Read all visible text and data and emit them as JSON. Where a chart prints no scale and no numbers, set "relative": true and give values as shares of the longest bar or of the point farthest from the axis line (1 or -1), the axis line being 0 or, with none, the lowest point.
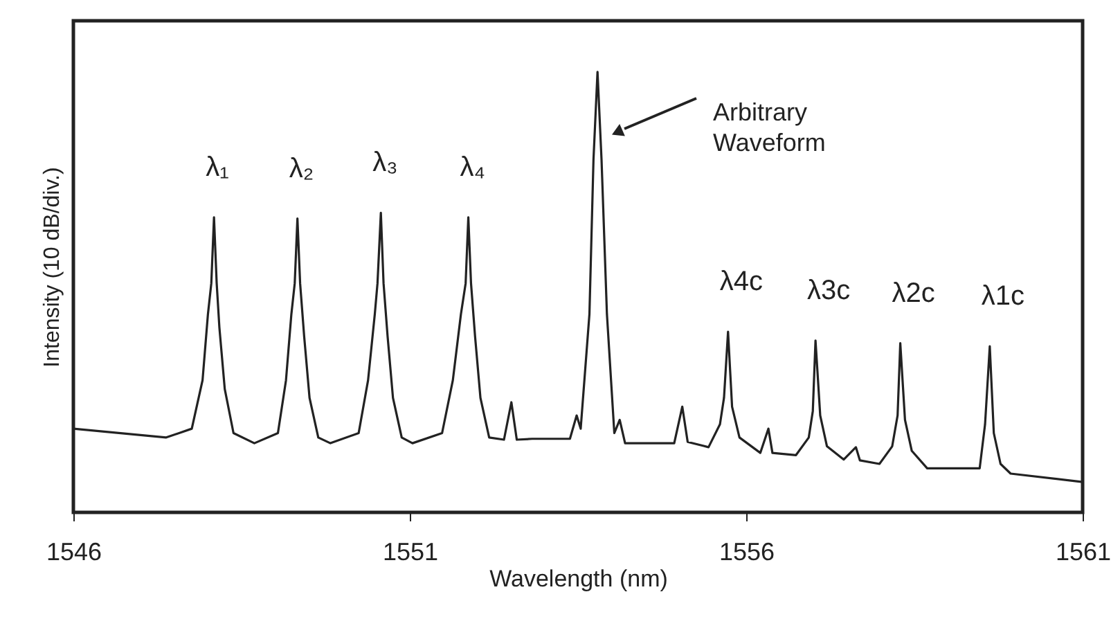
{
  "chart_data": {
    "type": "line",
    "relative": true,
    "xlabel": "Wavelength (nm)",
    "ylabel": "Intensity (10 dB/div.)",
    "xlim": [
      1546,
      1561
    ],
    "xticks": [
      1546,
      1551,
      1556,
      1561
    ],
    "grid": false,
    "marker": "none",
    "line_style": "solid",
    "series": [
      {
        "color": "#222222",
        "x": [
          1546.0,
          1547.38,
          1547.76,
          1547.92,
          1548.0,
          1548.05,
          1548.09,
          1548.13,
          1548.17,
          1548.25,
          1548.38,
          1548.69,
          1549.04,
          1549.16,
          1549.24,
          1549.29,
          1549.33,
          1549.37,
          1549.43,
          1549.51,
          1549.64,
          1549.82,
          1550.24,
          1550.38,
          1550.48,
          1550.52,
          1550.57,
          1550.61,
          1550.67,
          1550.75,
          1550.88,
          1551.04,
          1551.48,
          1551.64,
          1551.76,
          1551.83,
          1551.87,
          1551.91,
          1551.97,
          1552.05,
          1552.18,
          1552.4,
          1552.51,
          1552.59,
          1552.82,
          1553.38,
          1553.48,
          1553.54,
          1553.67,
          1553.73,
          1553.79,
          1553.85,
          1553.93,
          1554.04,
          1554.12,
          1554.2,
          1554.93,
          1555.05,
          1555.13,
          1555.44,
          1555.61,
          1555.67,
          1555.73,
          1555.79,
          1555.9,
          1556.21,
          1556.33,
          1556.39,
          1556.74,
          1556.93,
          1556.99,
          1557.03,
          1557.1,
          1557.2,
          1557.45,
          1557.63,
          1557.69,
          1557.98,
          1558.17,
          1558.25,
          1558.29,
          1558.36,
          1558.46,
          1558.69,
          1559.47,
          1559.55,
          1559.62,
          1559.68,
          1559.78,
          1559.93,
          1561.0
        ],
        "values": [
          0.19,
          0.17,
          0.19,
          0.3,
          0.45,
          0.52,
          0.67,
          0.52,
          0.42,
          0.28,
          0.18,
          0.157,
          0.18,
          0.3,
          0.45,
          0.52,
          0.667,
          0.52,
          0.4,
          0.26,
          0.17,
          0.157,
          0.18,
          0.3,
          0.45,
          0.52,
          0.68,
          0.52,
          0.4,
          0.26,
          0.17,
          0.157,
          0.18,
          0.3,
          0.45,
          0.52,
          0.67,
          0.52,
          0.4,
          0.26,
          0.17,
          0.165,
          0.25,
          0.165,
          0.167,
          0.167,
          0.22,
          0.19,
          0.45,
          0.8,
          1.0,
          0.8,
          0.45,
          0.18,
          0.21,
          0.157,
          0.157,
          0.24,
          0.16,
          0.148,
          0.2,
          0.26,
          0.41,
          0.24,
          0.17,
          0.135,
          0.19,
          0.135,
          0.13,
          0.17,
          0.23,
          0.39,
          0.22,
          0.15,
          0.12,
          0.148,
          0.118,
          0.11,
          0.15,
          0.22,
          0.384,
          0.21,
          0.14,
          0.1,
          0.1,
          0.2,
          0.377,
          0.18,
          0.11,
          0.088,
          0.069
        ]
      }
    ],
    "annotations": [
      {
        "text": "λ₁",
        "x": 1548.09,
        "y": 0.67
      },
      {
        "text": "λ₂",
        "x": 1549.33,
        "y": 0.667
      },
      {
        "text": "λ₃",
        "x": 1550.57,
        "y": 0.68
      },
      {
        "text": "λ₄",
        "x": 1551.87,
        "y": 0.67
      },
      {
        "text": "λ4c",
        "x": 1555.73,
        "y": 0.41
      },
      {
        "text": "λ3c",
        "x": 1557.03,
        "y": 0.39
      },
      {
        "text": "λ2c",
        "x": 1558.29,
        "y": 0.384
      },
      {
        "text": "λ1c",
        "x": 1559.62,
        "y": 0.377
      },
      "Arbitrary\nWaveform"
    ]
  }
}
